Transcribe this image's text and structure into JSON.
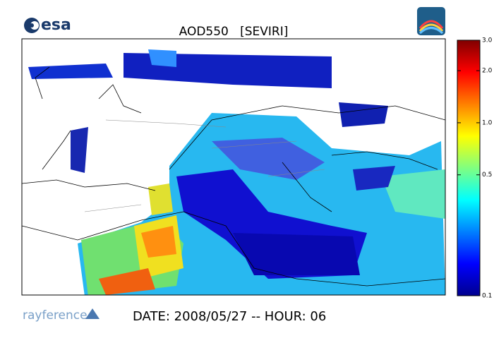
{
  "header": {
    "logo_text": "esa",
    "title": "AOD550   [SEVIRI]"
  },
  "colorbar": {
    "scale": "log",
    "lim": [
      0.1,
      3.0
    ],
    "ticks": [
      {
        "value": 3,
        "label": "3.0"
      },
      {
        "value": 2,
        "label": "2.0"
      },
      {
        "value": 1,
        "label": "1.0"
      },
      {
        "value": 0.5,
        "label": "0.5"
      },
      {
        "value": 0.1,
        "label": "0.1"
      }
    ],
    "colors": [
      "#00008f",
      "#0000ff",
      "#0080ff",
      "#00ffff",
      "#80ff80",
      "#ffff00",
      "#ff8000",
      "#ff0000",
      "#800000"
    ]
  },
  "footer": {
    "brand": "rayference",
    "date": "DATE: 2008/05/27 -- HOUR: 06"
  }
}
